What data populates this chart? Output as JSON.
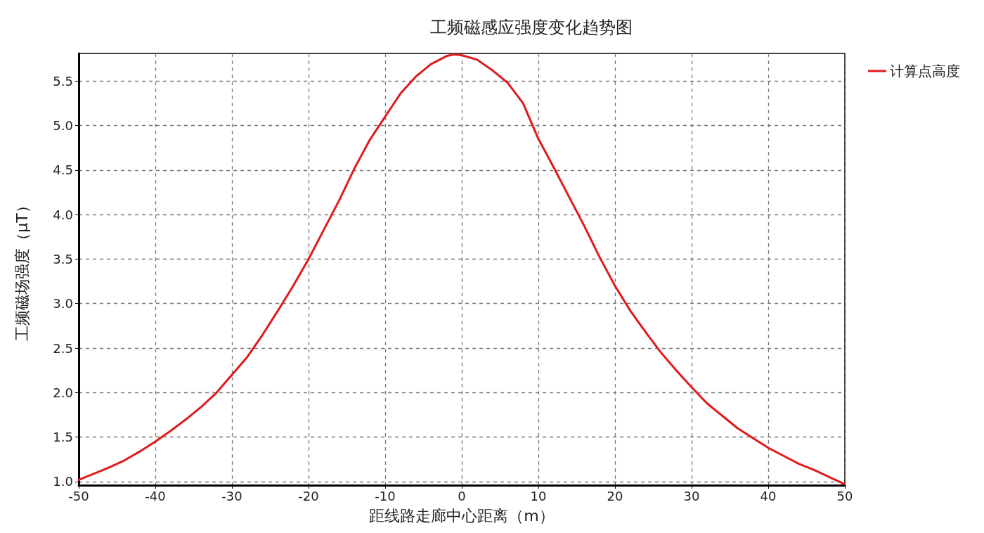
{
  "chart_data": {
    "type": "line",
    "title": "工频磁感应强度变化趋势图",
    "xlabel": "距线路走廊中心距离（m）",
    "ylabel": "工频磁场强度（μT）",
    "xlim": [
      -50,
      50
    ],
    "xticks": [
      -50,
      -40,
      -30,
      -20,
      -10,
      0,
      10,
      20,
      30,
      40,
      50
    ],
    "ylim": [
      0.96,
      5.81
    ],
    "yticks": [
      {
        "value": 1,
        "label": "1.0"
      },
      1.5,
      {
        "value": 2,
        "label": "2.0"
      },
      2.5,
      {
        "value": 3,
        "label": "3.0"
      },
      3.5,
      {
        "value": 4,
        "label": "4.0"
      },
      4.5,
      {
        "value": 5,
        "label": "5.0"
      },
      5.5
    ],
    "grid": true,
    "legend": "top right",
    "marker": "none",
    "line_style": "solid",
    "x": [
      -50,
      -48,
      -46,
      -44,
      -42,
      -40,
      -38,
      -36,
      -34,
      -32,
      -30,
      -28,
      -26,
      -24,
      -22,
      -20,
      -18,
      -16,
      -14,
      -12,
      -10,
      -8,
      -6,
      -4,
      -2,
      -1,
      0,
      2,
      4,
      6,
      8,
      10,
      12,
      14,
      16,
      18,
      20,
      22,
      24,
      26,
      28,
      30,
      32,
      34,
      36,
      38,
      40,
      42,
      44,
      46,
      48,
      50
    ],
    "series": [
      {
        "name": "计算点高度",
        "color": "#e01b1b",
        "values": [
          1.02,
          1.09,
          1.16,
          1.24,
          1.34,
          1.45,
          1.57,
          1.7,
          1.84,
          2.0,
          2.2,
          2.4,
          2.65,
          2.92,
          3.2,
          3.5,
          3.83,
          4.16,
          4.52,
          4.84,
          5.1,
          5.36,
          5.55,
          5.69,
          5.78,
          5.8,
          5.79,
          5.74,
          5.62,
          5.48,
          5.25,
          4.85,
          4.53,
          4.2,
          3.87,
          3.52,
          3.2,
          2.92,
          2.68,
          2.45,
          2.25,
          2.06,
          1.88,
          1.74,
          1.6,
          1.49,
          1.38,
          1.29,
          1.2,
          1.13,
          1.05,
          0.97
        ]
      }
    ]
  }
}
